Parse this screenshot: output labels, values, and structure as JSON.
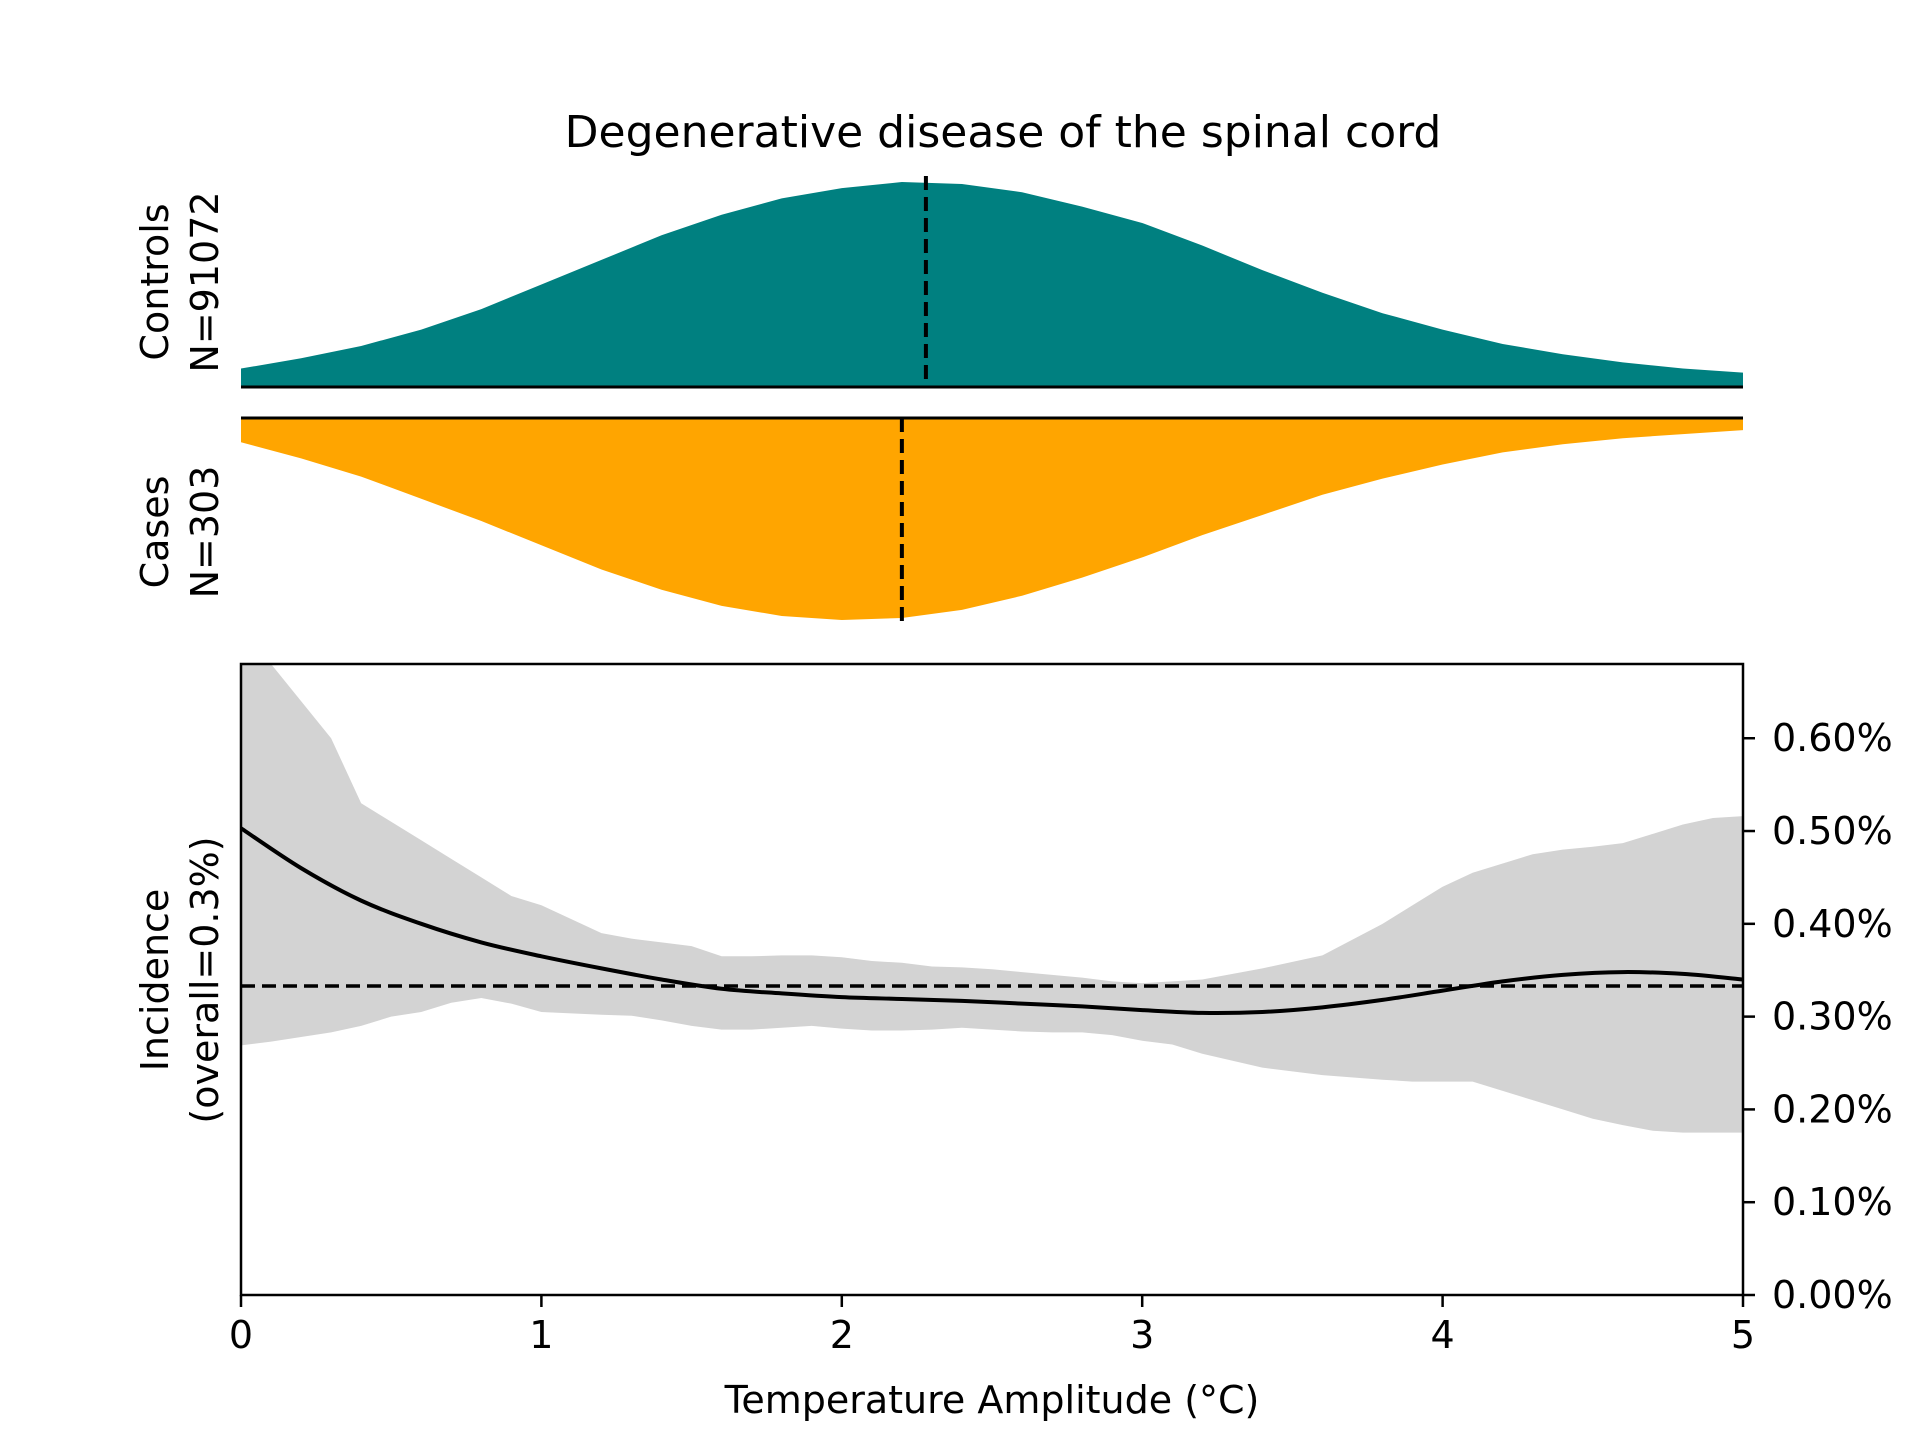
{
  "chart_data": {
    "type": "area",
    "title": "Degenerative disease of the spinal cord",
    "x_range": [
      0,
      5
    ],
    "distributions": {
      "controls": {
        "label_line1": "Controls",
        "label_line2": "N=91072",
        "color": "#008080",
        "median": 2.28,
        "x": [
          0,
          0.2,
          0.4,
          0.6,
          0.8,
          1.0,
          1.2,
          1.4,
          1.6,
          1.8,
          2.0,
          2.2,
          2.4,
          2.6,
          2.8,
          3.0,
          3.2,
          3.4,
          3.6,
          3.8,
          4.0,
          4.2,
          4.4,
          4.6,
          4.8,
          5.0
        ],
        "density": [
          0.09,
          0.14,
          0.2,
          0.28,
          0.38,
          0.5,
          0.62,
          0.74,
          0.84,
          0.92,
          0.97,
          1.0,
          0.99,
          0.95,
          0.88,
          0.8,
          0.69,
          0.57,
          0.46,
          0.36,
          0.28,
          0.21,
          0.16,
          0.12,
          0.09,
          0.07
        ]
      },
      "cases": {
        "label_line1": "Cases",
        "label_line2": "N=303",
        "color": "#FFA500",
        "median": 2.2,
        "x": [
          0,
          0.2,
          0.4,
          0.6,
          0.8,
          1.0,
          1.2,
          1.4,
          1.6,
          1.8,
          2.0,
          2.2,
          2.4,
          2.6,
          2.8,
          3.0,
          3.2,
          3.4,
          3.6,
          3.8,
          4.0,
          4.2,
          4.4,
          4.6,
          4.8,
          5.0
        ],
        "density": [
          0.12,
          0.2,
          0.29,
          0.4,
          0.51,
          0.63,
          0.75,
          0.85,
          0.93,
          0.98,
          1.0,
          0.99,
          0.95,
          0.88,
          0.79,
          0.69,
          0.58,
          0.48,
          0.38,
          0.3,
          0.23,
          0.17,
          0.13,
          0.1,
          0.08,
          0.06
        ]
      }
    },
    "incidence": {
      "ylabel_line1": "Incidence",
      "ylabel_line2": "(overall=0.3%)",
      "xlabel": "Temperature Amplitude (°C)",
      "ylim": [
        0,
        0.68
      ],
      "overall": 0.333,
      "x": [
        0,
        0.2,
        0.4,
        0.6,
        0.8,
        1.0,
        1.2,
        1.4,
        1.6,
        1.8,
        2.0,
        2.2,
        2.4,
        2.6,
        2.8,
        3.0,
        3.2,
        3.4,
        3.6,
        3.8,
        4.0,
        4.2,
        4.4,
        4.6,
        4.8,
        5.0
      ],
      "y": [
        0.503,
        0.46,
        0.425,
        0.4,
        0.38,
        0.365,
        0.352,
        0.34,
        0.33,
        0.325,
        0.321,
        0.319,
        0.317,
        0.314,
        0.311,
        0.307,
        0.304,
        0.305,
        0.31,
        0.318,
        0.328,
        0.338,
        0.345,
        0.348,
        0.346,
        0.34
      ],
      "ci_x": [
        0,
        0.1,
        0.2,
        0.3,
        0.4,
        0.5,
        0.6,
        0.7,
        0.8,
        0.9,
        1.0,
        1.2,
        1.3,
        1.4,
        1.5,
        1.6,
        1.7,
        1.8,
        1.9,
        2.0,
        2.1,
        2.2,
        2.3,
        2.4,
        2.5,
        2.6,
        2.7,
        2.8,
        2.9,
        3.0,
        3.1,
        3.2,
        3.4,
        3.6,
        3.8,
        3.9,
        4.0,
        4.1,
        4.2,
        4.3,
        4.4,
        4.5,
        4.6,
        4.7,
        4.8,
        4.9,
        5.0
      ],
      "ci_upper": [
        0.72,
        0.68,
        0.64,
        0.6,
        0.53,
        0.51,
        0.49,
        0.47,
        0.45,
        0.43,
        0.42,
        0.39,
        0.384,
        0.38,
        0.376,
        0.365,
        0.365,
        0.366,
        0.366,
        0.364,
        0.36,
        0.358,
        0.354,
        0.353,
        0.351,
        0.348,
        0.345,
        0.342,
        0.338,
        0.336,
        0.338,
        0.34,
        0.352,
        0.366,
        0.4,
        0.42,
        0.44,
        0.455,
        0.465,
        0.475,
        0.48,
        0.483,
        0.487,
        0.497,
        0.507,
        0.514,
        0.516
      ],
      "ci_lower": [
        0.269,
        0.273,
        0.278,
        0.283,
        0.29,
        0.3,
        0.305,
        0.315,
        0.32,
        0.314,
        0.305,
        0.302,
        0.301,
        0.296,
        0.29,
        0.286,
        0.286,
        0.288,
        0.29,
        0.287,
        0.285,
        0.285,
        0.286,
        0.288,
        0.286,
        0.284,
        0.283,
        0.283,
        0.28,
        0.274,
        0.27,
        0.26,
        0.245,
        0.237,
        0.232,
        0.23,
        0.23,
        0.23,
        0.22,
        0.21,
        0.2,
        0.19,
        0.183,
        0.177,
        0.175,
        0.175,
        0.175
      ],
      "ci_color": "#d3d3d3",
      "yticks": [
        0.0,
        0.1,
        0.2,
        0.3,
        0.4,
        0.5,
        0.6
      ],
      "ytick_labels": [
        "0.00%",
        "0.10%",
        "0.20%",
        "0.30%",
        "0.40%",
        "0.50%",
        "0.60%"
      ],
      "xticks": [
        0,
        1,
        2,
        3,
        4,
        5
      ],
      "xtick_labels": [
        "0",
        "1",
        "2",
        "3",
        "4",
        "5"
      ]
    }
  }
}
